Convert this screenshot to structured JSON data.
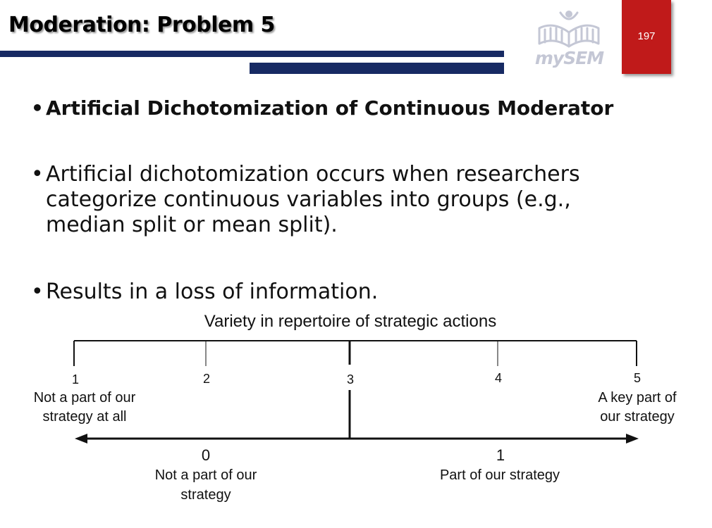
{
  "slide": {
    "title": "Moderation: Problem 5",
    "page_number": "197",
    "logo_text": "mySEM"
  },
  "bullets": [
    "Artificial Dichotomization of Continuous Moderator",
    "Artificial dichotomization occurs when researchers",
    "categorize continuous variables into groups (e.g.,",
    "median split or mean split).",
    "Results in a loss of information."
  ],
  "figure": {
    "title": "Variety in repertoire of strategic actions",
    "scale_points": [
      "1",
      "2",
      "3",
      "4",
      "5"
    ],
    "left_anchor": [
      "Not a part of our",
      "strategy at all"
    ],
    "right_anchor": [
      "A key part of",
      "our strategy"
    ],
    "groups": [
      {
        "code": "0",
        "label": [
          "Not a part of our",
          "strategy"
        ]
      },
      {
        "code": "1",
        "label": [
          "Part of our strategy"
        ]
      }
    ]
  },
  "colors": {
    "bar": "#172a63",
    "page_box": "#c01a1a",
    "logo": "#c4c7d5"
  }
}
